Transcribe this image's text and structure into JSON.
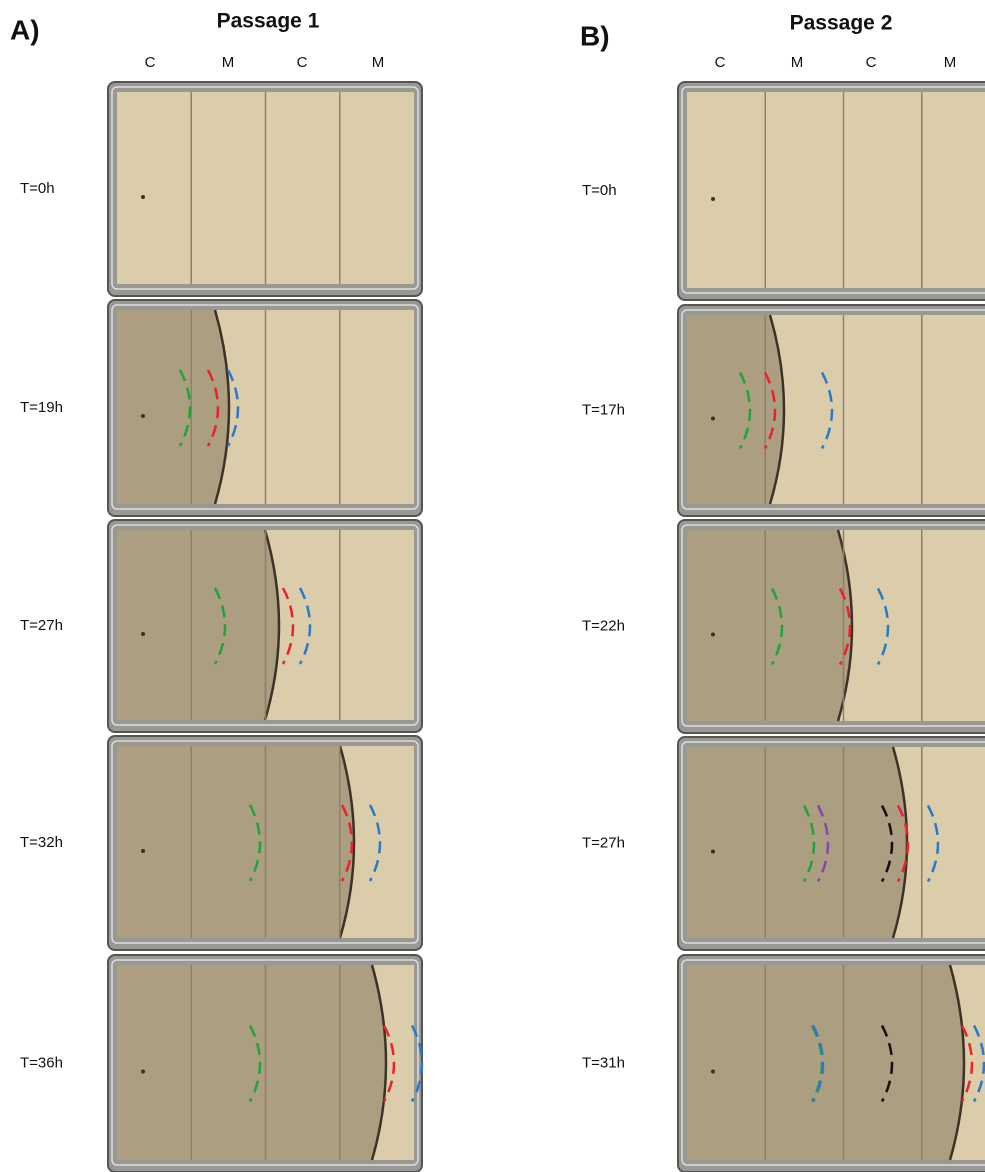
{
  "panels": [
    {
      "label": "A)",
      "title": "Passage 1",
      "columns": [
        "C",
        "M",
        "C",
        "M"
      ],
      "rows": [
        "T=0h",
        "T=19h",
        "T=27h",
        "T=32h",
        "T=36h"
      ]
    },
    {
      "label": "B)",
      "title": "Passage 2",
      "columns": [
        "C",
        "M",
        "C",
        "M"
      ],
      "rows": [
        "T=0h",
        "T=17h",
        "T=22h",
        "T=27h",
        "T=31h"
      ]
    }
  ]
}
